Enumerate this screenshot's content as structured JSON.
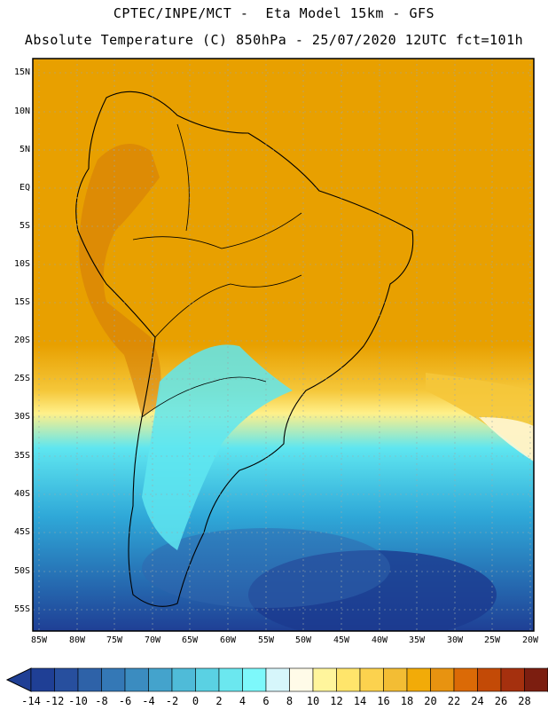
{
  "header": {
    "line1": "CPTEC/INPE/MCT -  Eta Model 15km - GFS",
    "line2": "Absolute Temperature (C) 850hPa - 25/07/2020 12UTC fct=101h"
  },
  "map": {
    "lat_labels": [
      "15N",
      "10N",
      "5N",
      "EQ",
      "5S",
      "10S",
      "15S",
      "20S",
      "25S",
      "30S",
      "35S",
      "40S",
      "45S",
      "50S",
      "55S"
    ],
    "lon_labels": [
      "85W",
      "80W",
      "75W",
      "70W",
      "65W",
      "60W",
      "55W",
      "50W",
      "45W",
      "40W",
      "35W",
      "30W",
      "25W",
      "20W"
    ],
    "colors": {
      "hot": "#e8a000",
      "warm": "#f0b000",
      "mild": "#f5c73a",
      "cool": "#fff08a",
      "cold": "#5fe6f0",
      "colder": "#2fa8d8",
      "coldest": "#1f3f95"
    }
  },
  "colorbar": {
    "labels": [
      "-14",
      "-12",
      "-10",
      "-8",
      "-6",
      "-4",
      "-2",
      "0",
      "2",
      "4",
      "6",
      "8",
      "10",
      "12",
      "14",
      "16",
      "18",
      "20",
      "22",
      "24",
      "26",
      "28"
    ],
    "colors": [
      "#1f3f95",
      "#274f9e",
      "#2e62a8",
      "#3478b6",
      "#3b8cc0",
      "#44a3cc",
      "#4fbbd8",
      "#5ad1e3",
      "#6be7ef",
      "#7df8fb",
      "#d6f6fb",
      "#fffbe8",
      "#fff59c",
      "#ffe56b",
      "#fcd24e",
      "#f3bd34",
      "#f2ab08",
      "#e89310",
      "#db6a06",
      "#c34a06",
      "#a5300e",
      "#7c1e10",
      "#8a0022"
    ]
  }
}
